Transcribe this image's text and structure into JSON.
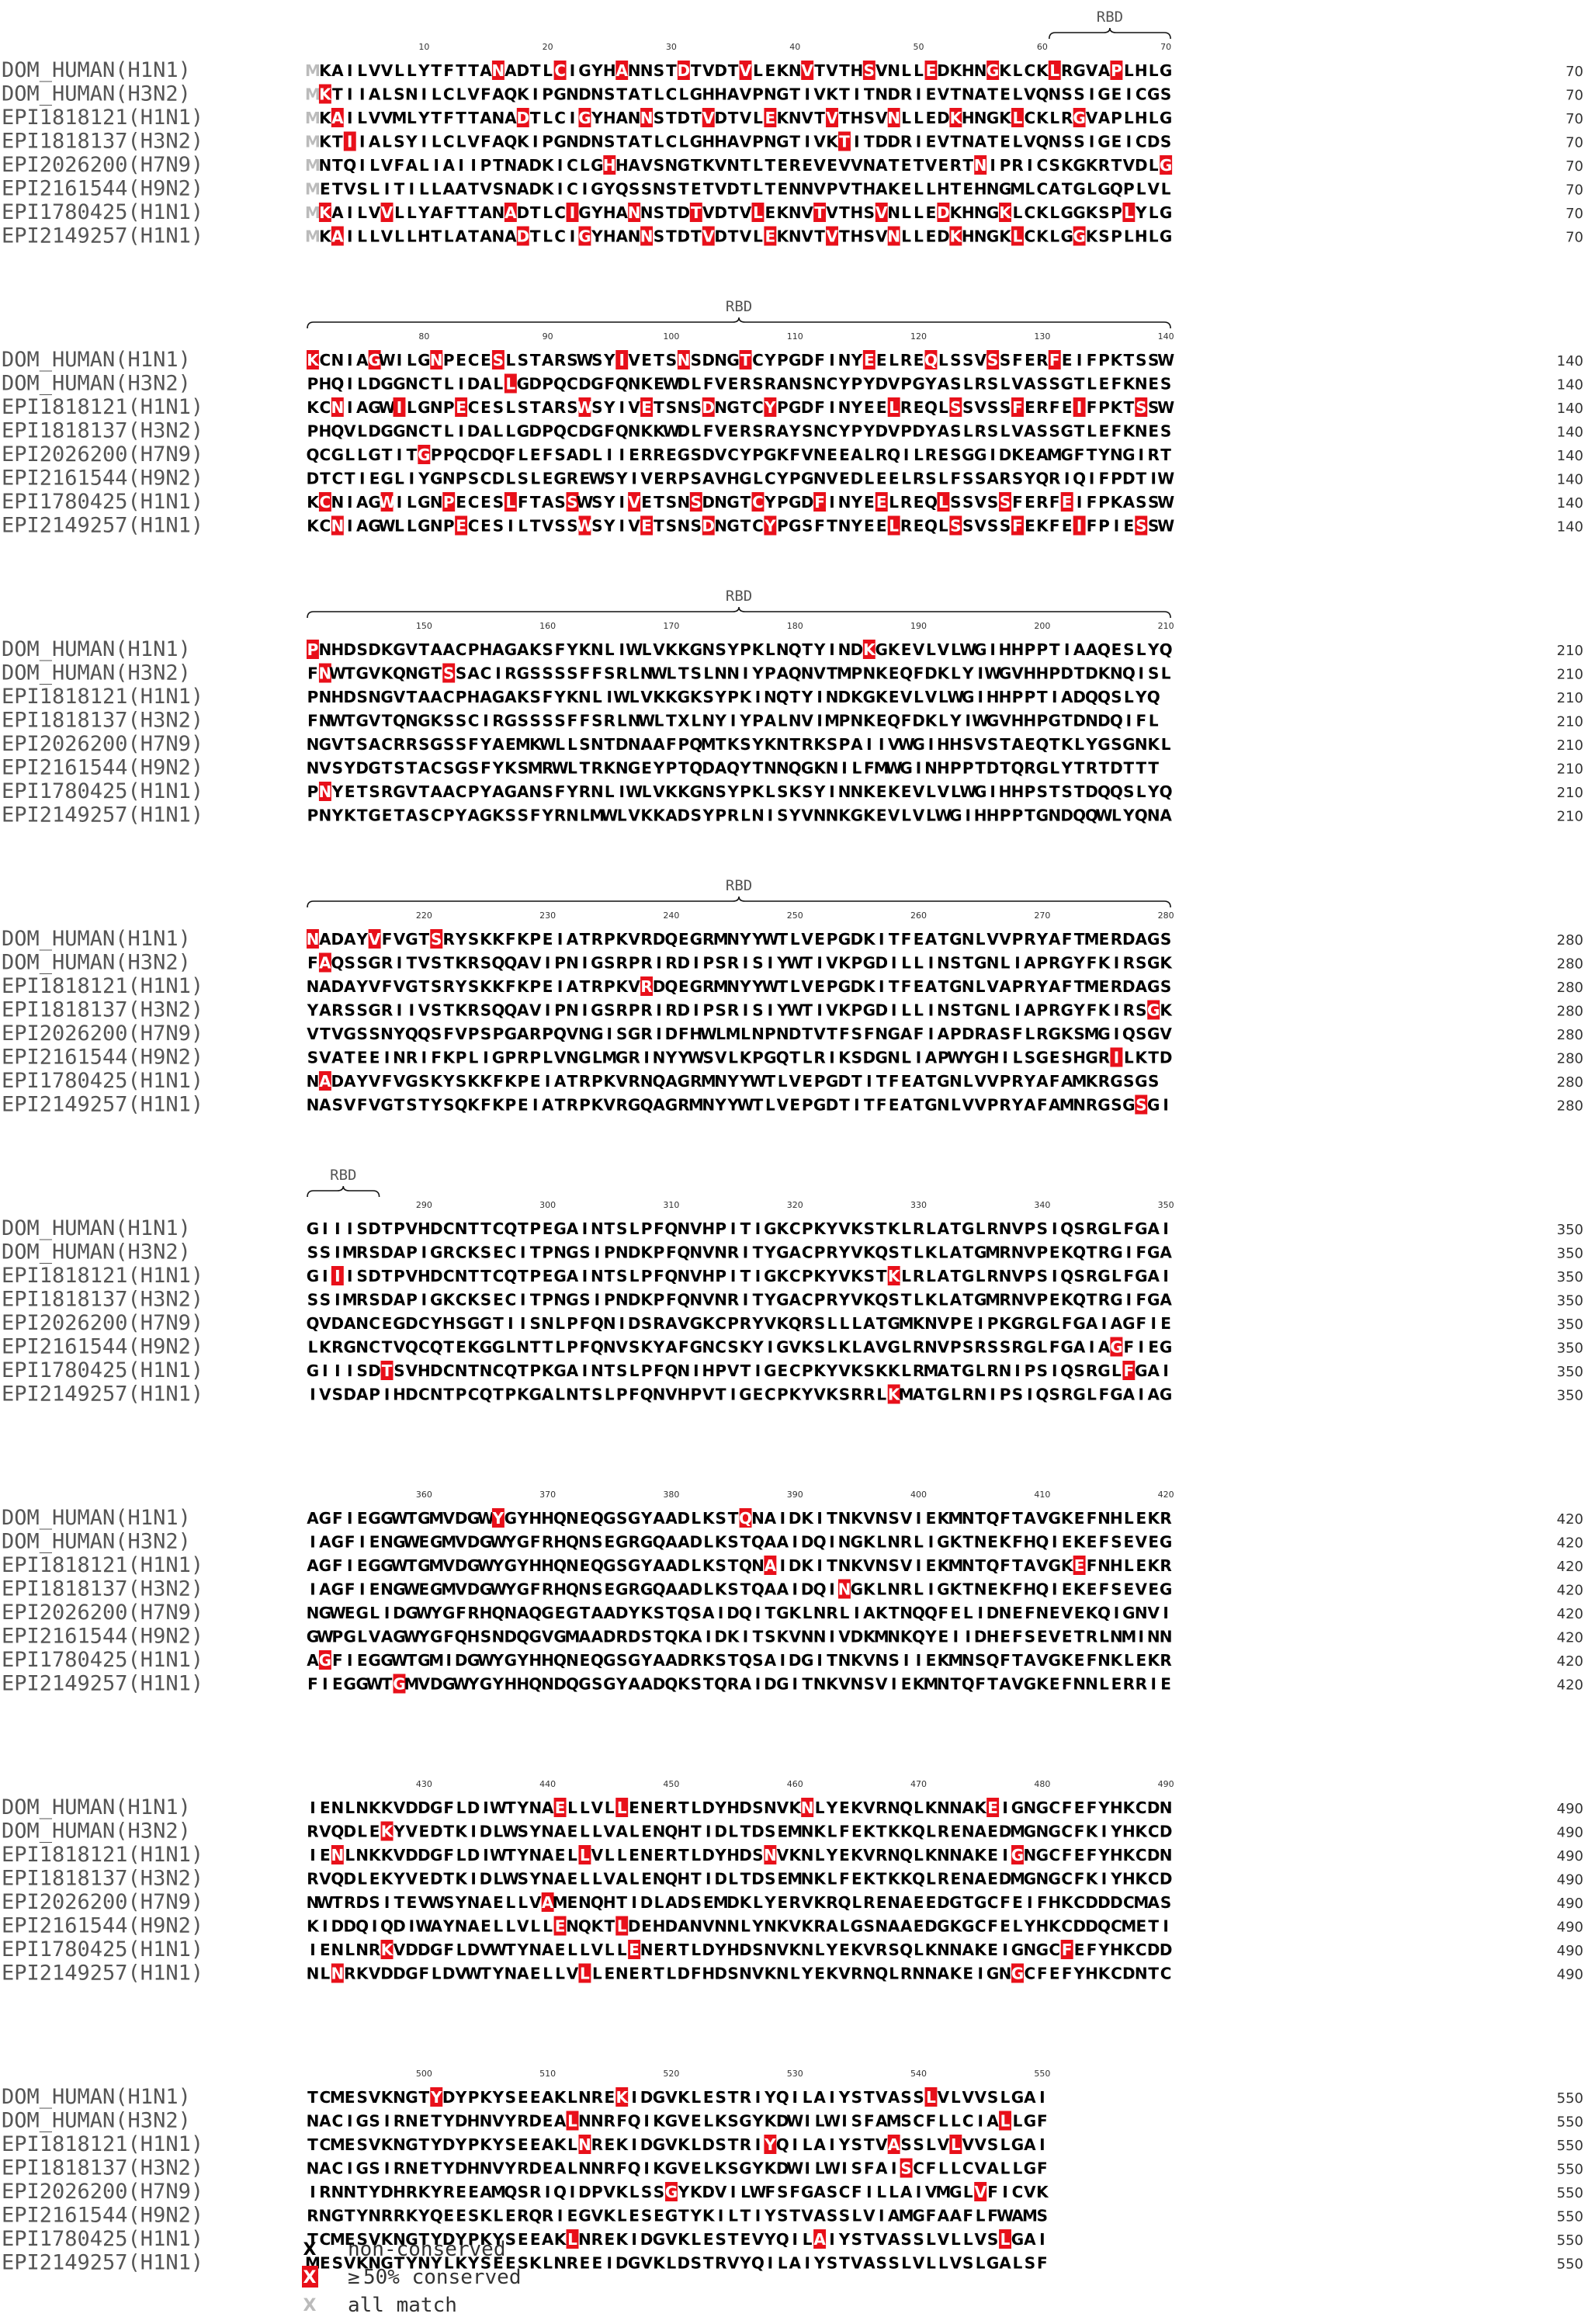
{
  "sequence_names": [
    "DOM_HUMAN(H1N1)",
    "DOM_HUMAN(H3N2)",
    "EPI1818121(H1N1)",
    "EPI1818137(H3N2)",
    "EPI2026200(H7N9)",
    "EPI2161544(H9N2)",
    "EPI1780425(H1N1)",
    "EPI2149257(H1N1)"
  ],
  "blocks": [
    {
      "start": 1,
      "end": 70,
      "ticks": [
        10,
        20,
        30,
        40,
        50,
        60,
        70
      ],
      "rbd": {
        "label": "RBD",
        "from": 61,
        "to": 70
      },
      "rows": [
        "MKAILVVLLYTFTTANADTLCIGYHANNSTDTVDTVLEKNVTVTHSVNLLEDKHNGKLCKLRGVAPLHLG",
        "MKTIIALSNILCLVFAQKIPGNDNSTATLCLGHHAVPNGTIVKTITNDRIEVTNATELVQNSSIGEICGS",
        "MKAILVVMLYTFTTANADTLCIGYHANNSTDTVDTVLEKNVTVTHSVNLLEDKHNGKLCKLRGVAPLHLG",
        "MKTIIALSYILCLVFAQKIPGNDNSTATLCLGHHAVPNGTIVKTITDDRIEVTNATELVQNSSIGEICDS",
        "MNTQILVFALIAIIPTNADKICLGHHAVSNGTKVNTLTEREVEVVNATETVERTNIPRICSKGKRTVDLG",
        "METVSLITILLAATVSNADKICIGYQSSNSTETVDTLTENNVPVTHAKELLHTEHNGMLCATGLGQPLVL",
        "MKAILVVLLYAFTTANADTLCIGYHANNSTDTVDTVLEKNVTVTHSVNLLEDKHNGKLCKLGGKSPLYLG",
        "MKAILLVLLHTLATANADTLCIGYHANNSTDTVDTVLEKNVTVTHSVNLLEDKHNGKLCKLGGKSPLHLG"
      ]
    },
    {
      "start": 71,
      "end": 140,
      "ticks": [
        80,
        90,
        100,
        110,
        120,
        130,
        140
      ],
      "rbd": {
        "label": "RBD",
        "from": 71,
        "to": 140
      },
      "rows": [
        "KCNIAGWILGNPECESLSTARSWSYIVETSNSDNGTCYPGDFINYEELREQLSSVSSFERFEIFPKTSSW",
        "PHQILDGGNCTLIDALLGDPQCDGFQNKEWDLFVERSRANSNCYPYDVPGYASLRSLVASSGTLEFKNES",
        "KCNIAGWILGNPECESLSTARSWSYIVETSNSDNGTCYPGDFINYEELREQLSSVSSFERFEIFPKTSSW",
        "PHQVLDGGNCTLIDALLGDPQCDGFQNKKWDLFVERSRAYSNCYPYDVPDYASLRSLVASSGTLEFKNES",
        "QCGLLGTITGPPQCDQFLEFSADLIIERREGSDVCYPGKFVNEEALRQILRESGGIDKEAMGFTYNGIRT",
        "DTCTIEGLIYGNPSCDLSLEGREWSYIVERPSAVHGLCYPGNVEDLEELRSLFSSARSYQRIQIFPDTIW",
        "KCNIAGWILGNPECESLFTASSWSYIVETSNSDNGTCYPGDFINYEELREQLSSVSSFERFEIFPKASSW",
        "KCNIAGWLLGNPECESILTVSSWSYIVETSNSDNGTCYPGSFTNYEELREQLSSVSSFEKFEIFPIESSW"
      ]
    },
    {
      "start": 141,
      "end": 210,
      "ticks": [
        150,
        160,
        170,
        180,
        190,
        200,
        210
      ],
      "rbd": {
        "label": "RBD",
        "from": 141,
        "to": 210
      },
      "rows": [
        "PNHDSDKGVTAACPHAGAKSFYKNLIWLVKKGNSYPKLNQTYINDKGKEVLVLWGIHHPPTIAAQESLYQ",
        "FNWTGVKQNGTSSACIRGSSSSFFSRLNWLTSLNNIYPAQNVTMPNKEQFDKLYIWGVHHPDTDKNQISL",
        "PNHDSNGVTAACPHAGAKSFYKNLIWLVKKGKSYPKINQTYINDKGKEVLVLWGIHHPPTIADQQSLYQ",
        "FNWTGVTQNGKSSCIRGSSSSFFSRLNWLTXLNYIYPALNVIMPNKEQFDKLYIWGVHHPGTDNDQIFL",
        "NGVTSACRRSGSSFYAEMKWLLSNTDNAAFPQMTKSYKNTRKSPAIIVWGIHHSVSTAEQTKLYGSGNKL",
        "NVSYDGTSTACSGSFYKSMRWLTRKNGEYPTQDAQYTNNQGKNILFMWGINHPPTDTQRGLYTRTDTTT",
        "PNYETSRGVTAACPYAGANSFYRNLIWLVKKGNSYPKLSKSYINNKEKEVLVLWGIHHPSTSTDQQSLYQ",
        "PNYKTGETASCPYAGKSSFYRNLMWLVKKADSYPRLNISYVNNKGKEVLVLWGIHHPPTGNDQQWLYQNA"
      ]
    },
    {
      "start": 211,
      "end": 280,
      "ticks": [
        220,
        230,
        240,
        250,
        260,
        270,
        280
      ],
      "rbd": {
        "label": "RBD",
        "from": 211,
        "to": 280
      },
      "rows": [
        "NADAYVFVGTSRYSKKFKPEIATRPKVRDQEGRMNYYWTLVEPGDKITFEATGNLVVPRYAFTMERDAGS",
        "FAQSSGRITVSTKRSQQAVIPNIGSRPRIRDIPSRISIYWTIVKPGDILLINSTGNLIAPRGYFKIRSGK",
        "NADAYVFVGTSRYSKKFKPEIATRPKVRDQEGRMNYYWTLVEPGDKITFEATGNLVAPRYAFTMERDAGS",
        "YARSSGRIIVSTKRSQQAVIPNIGSRPRIRDIPSRISIYWTIVKPGDILLINSTGNLIAPRGYFKIRSGK",
        "VTVGSSNYQQSFVPSPGARPQVNGISGRIDFHWLMLNPNDTVTFSFNGAFIAPDRASFLRGKSMGIQSGV",
        "SVATEEINRIFKPLIGPRPLVNGLMGRINYYWSVLKPGQTLRIKSDGNLIAPWYGHILSGESHGRILKTD",
        "NADAYVFVGSKYSKKFKPEIATRPKVRNQAGRMNYYWTLVEPGDTITFEATGNLVVPRYAFAMKRGSGS",
        "NASVFVGTSTYSQKFKPEIATRPKVRGQAGRMNYYWTLVEPGDTITFEATGNLVVPRYAFAMNRGSGSGI"
      ]
    },
    {
      "start": 281,
      "end": 350,
      "ticks": [
        290,
        300,
        310,
        320,
        330,
        340,
        350
      ],
      "rbd": {
        "label": "RBD",
        "from": 281,
        "to": 286
      },
      "rows": [
        "GIIISDTPVHDCNTTCQTPEGAINTSLPFQNVHPITIGKCPKYVKSTKLRLATGLRNVPSIQSRGLFGAI",
        "SSIMRSDAPIGRCKSECITPNGSIPNDKPFQNVNRITYGACPRYVKQSTLKLATGMRNVPEKQTRGIFGA",
        "GIIISDTPVHDCNTTCQTPEGAINTSLPFQNVHPITIGKCPKYVKSTKLRLATGLRNVPSIQSRGLFGAI",
        "SSIMRSDAPIGKCKSECITPNGSIPNDKPFQNVNRITYGACPRYVKQSTLKLATGMRNVPEKQTRGIFGA",
        "QVDANCEGDCYHSGGTIISNLPFQNIDSRAVGKCPRYVKQRSLLLATGMKNVPEIPKGRGLFGAIAGFIE",
        "LKRGNCTVQCQTEKGGLNTTLPFQNVSKYAFGNCSKYIGVKSLKLAVGLRNVPSRSSRGLFGAIAGFIEG",
        "GIIISDTSVHDCNTNCQTPKGAINTSLPFQNIHPVTIGECPKYVKSKKLRMATGLRNIPSIQSRGLFGAI",
        "IVSDAPIHDCNTPCQTPKGALNTSLPFQNVHPVTIGECPKYVKSRRLKMATGLRNIPSIQSRGLFGAIAG"
      ]
    },
    {
      "start": 351,
      "end": 420,
      "ticks": [
        360,
        370,
        380,
        390,
        400,
        410,
        420
      ],
      "rbd": null,
      "rows": [
        "AGFIEGGWTGMVDGWYGYHHQNEQGSGYAADLKSTQNAIDKITNKVNSVIEKMNTQFTAVGKEFNHLEKR",
        "IAGFIENGWEGMVDGWYGFRHQNSEGRGQAADLKSTQAAIDQINGKLNRLIGKTNEKFHQIEKEFSEVEG",
        "AGFIEGGWTGMVDGWYGYHHQNEQGSGYAADLKSTQNAIDKITNKVNSVIEKMNTQFTAVGKEFNHLEKR",
        "IAGFIENGWEGMVDGWYGFRHQNSEGRGQAADLKSTQAAIDQINGKLNRLIGKTNEKFHQIEKEFSEVEG",
        "NGWEGLIDGWYGFRHQNAQGEGTAADYKSTQSAIDQITGKLNRLIAKTNQQFELIDNEFNEVEKQIGNVI",
        "GWPGLVAGWYGFQHSNDQGVGMAADRDSTQKAIDKITSKVNNIVDKMNKQYEIIDHEFSEVETRLNMINN",
        "AGFIEGGWTGMIDGWYGYHHQNEQGSGYAADRKSTQSAIDGITNKVNSIIEKMNSQFTAVGKEFNKLEKR",
        "FIEGGWTGMVDGWYGYHHQNDQGSGYAADQKSTQRAIDGITNKVNSVIEKMNTQFTAVGKEFNNLERRIE"
      ]
    },
    {
      "start": 421,
      "end": 490,
      "ticks": [
        430,
        440,
        450,
        460,
        470,
        480,
        490
      ],
      "rbd": null,
      "rows": [
        "IENLNKKVDDGFLDIWTYNAELLVLLENERTLDYHDSNVKNLYEKVRNQLKNNAKEIGNGCFEFYHKCDN",
        "RVQDLEKYVEDTKIDLWSYNAELLVALENQHTIDLTDSEMNKLFEKTKKQLRENAEDMGNGCFKIYHKCD",
        "IENLNKKVDDGFLDIWTYNAELLVLLENERTLDYHDSNVKNLYEKVRNQLKNNAKEIGNGCFEFYHKCDN",
        "RVQDLEKYVEDTKIDLWSYNAELLVALENQHTIDLTDSEMNKLFEKTKKQLRENAEDMGNGCFKIYHKCD",
        "NWTRDSITEVWSYNAELLVAMENQHTIDLADSEMDKLYERVKRQLRENAEEDGTGCFEIFHKCDDDCMAS",
        "KIDDQIQDIWAYNAELLVLLENQKTLDEHDANVNNLYNKVKRALGSNAAEDGKGCFELYHKCDDQCMETI",
        "IENLNRKVDDGFLDVWTYNAELLVLLENERTLDYHDSNVKNLYEKVRSQLKNNAKEIGNGCFEFYHKCDD",
        "NLNRKVDDGFLDVWTYNAELLVLLENERTLDFHDSNVKNLYEKVRNQLRNNAKEIGNGCFEFYHKCDNTC"
      ]
    },
    {
      "start": 491,
      "end": 550,
      "ticks": [
        500,
        510,
        520,
        530,
        540,
        550
      ],
      "rbd": null,
      "rows": [
        "TCMESVKNGTYDYPKYSEEAKLNREKIDGVKLESTRIYQILAIYSTVASSLVLVVSLGAI",
        "NACIGSIRNETYDHNVYRDEALNNRFQIKGVELKSGYKDWILWISFAMSCFLLCIALLGF",
        "TCMESVKNGTYDYPKYSEEAKLNREKIDGVKLDSTRIYQILAIYSTVASSLVLVVSLGAI",
        "NACIGSIRNETYDHNVYRDEALNNRFQIKGVELKSGYKDWILWISFAISCFLLCVALLGF",
        "IRNNTYDHRKYREEAMQSRIQIDPVKLSSGYKDVILWFSFGASCFILLAIVMGLVFICVK",
        "RNGTYNRRKYQEESKLERQRIEGVKLESEGTYKILTIYSTVASSLVIAMGFAAFLFWAMS",
        "TCMESVKNGTYDYPKYSEEAKLNREKIDGVKLESTEVYQILAIYSTVASSLVLLVSLGAI",
        "MESVKNGTYNYLKYSEESKLNREEIDGVKLDSTRVYQILAIYSTVASSLVLLVSLGALSF"
      ]
    }
  ],
  "legend": [
    {
      "symbol": "X",
      "text": "non-conserved",
      "style": "plain"
    },
    {
      "symbol": "X",
      "prefix": "≥",
      "text": "50% conserved",
      "style": "red-box"
    },
    {
      "symbol": "X",
      "text": "all match",
      "style": "grey"
    }
  ],
  "colors": {
    "highlight": "#e8101a",
    "match": "#bbbbbb",
    "text": "#000000",
    "label": "#555555"
  }
}
